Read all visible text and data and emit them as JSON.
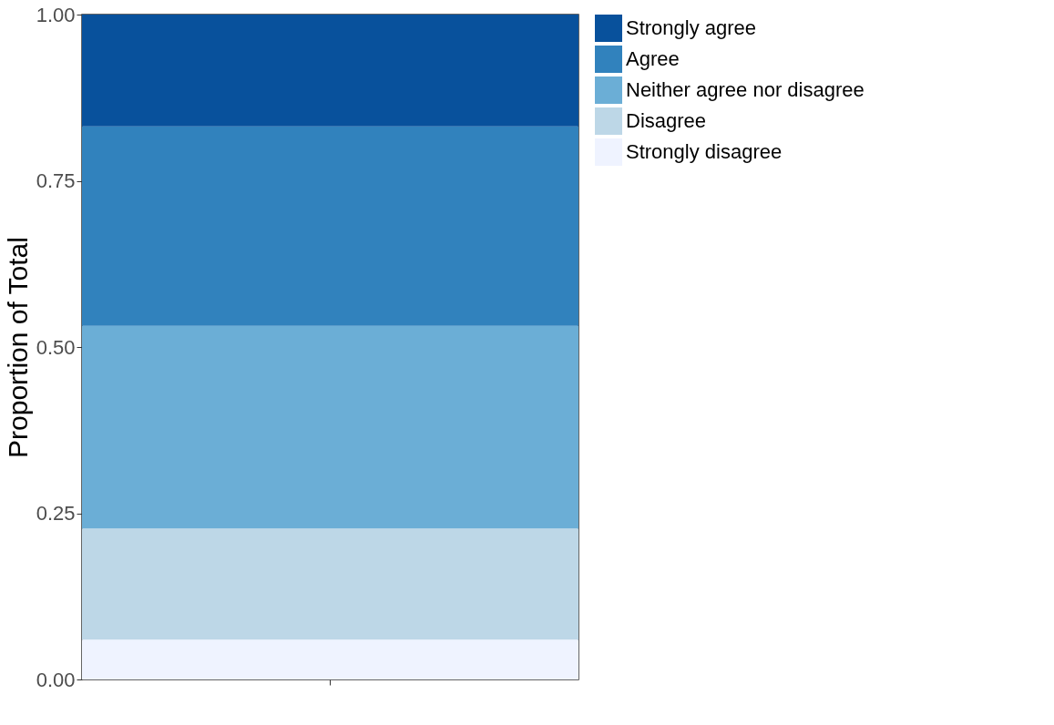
{
  "chart_data": {
    "type": "bar",
    "stacked": true,
    "ylabel": "Proportion of Total",
    "categories": [
      null
    ],
    "series": [
      {
        "name": "Strongly disagree",
        "color": "#eff3ff",
        "values": [
          0.06
        ]
      },
      {
        "name": "Disagree",
        "color": "#bdd7e7",
        "values": [
          0.167
        ]
      },
      {
        "name": "Neither agree nor disagree",
        "color": "#6baed6",
        "values": [
          0.305
        ]
      },
      {
        "name": "Agree",
        "color": "#3182bd",
        "values": [
          0.3
        ]
      },
      {
        "name": "Strongly agree",
        "color": "#08519c",
        "values": [
          0.168
        ]
      }
    ],
    "ylim": [
      0,
      1
    ],
    "yticks": [
      {
        "value": 0,
        "label": "0.00"
      },
      {
        "value": 0.25,
        "label": "0.25"
      },
      {
        "value": 0.5,
        "label": "0.50"
      },
      {
        "value": 0.75,
        "label": "0.75"
      },
      {
        "value": 1,
        "label": "1.00"
      }
    ],
    "grid": false,
    "legend": "right"
  }
}
